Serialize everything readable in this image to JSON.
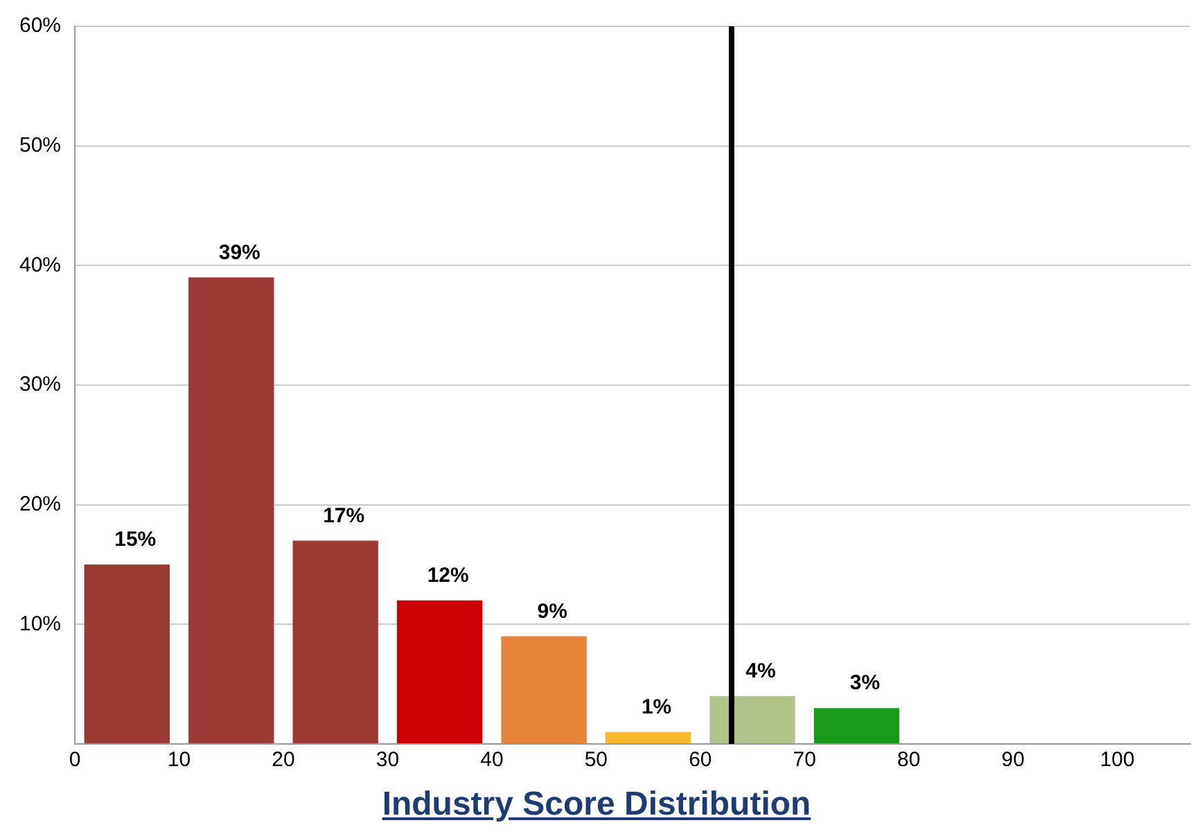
{
  "chart_data": {
    "type": "histogram",
    "title": "Industry Score Distribution",
    "bins": [
      0,
      10,
      20,
      30,
      40,
      50,
      60,
      70,
      80
    ],
    "values": [
      15,
      39,
      17,
      12,
      9,
      1,
      4,
      3
    ],
    "colors": [
      "#9b3a35",
      "#9b3a35",
      "#9b3a35",
      "#cc0000",
      "#e8843a",
      "#f7b82a",
      "#b0c48a",
      "#1a9a1a"
    ],
    "value_labels": [
      "15%",
      "39%",
      "17%",
      "12%",
      "9%",
      "1%",
      "4%",
      "3%"
    ],
    "xlim": [
      0,
      107
    ],
    "xticks": [
      0,
      10,
      20,
      30,
      40,
      50,
      60,
      70,
      80,
      90,
      100
    ],
    "ylim": [
      0,
      60
    ],
    "yticks": [
      {
        "value": 0,
        "label": null
      },
      {
        "value": 10,
        "label": "10%"
      },
      {
        "value": 20,
        "label": "20%"
      },
      {
        "value": 30,
        "label": "30%"
      },
      {
        "value": 40,
        "label": "40%"
      },
      {
        "value": 50,
        "label": "50%"
      },
      {
        "value": 60,
        "label": "60%"
      }
    ],
    "ref_lines": [
      {
        "axis": "x",
        "value": 63,
        "color": "#000000"
      }
    ],
    "grid": "y",
    "legend": false
  }
}
